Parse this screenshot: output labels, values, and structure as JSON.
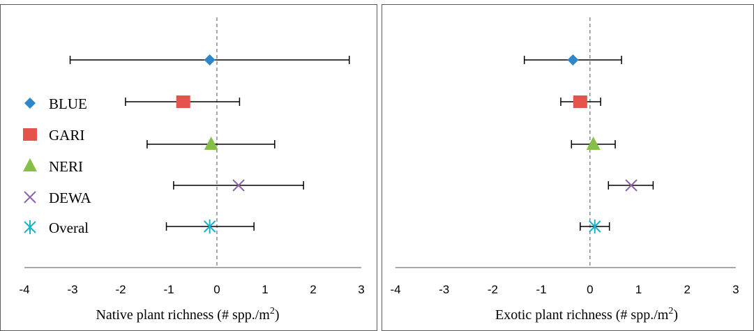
{
  "chart_data": [
    {
      "type": "scatter",
      "subtype": "forest-plot-with-error-bars",
      "xlabel": "Native plant richness (# spp./m²)",
      "xlim": [
        -4,
        3
      ],
      "xticks": [
        "-4",
        "-3",
        "-2",
        "-1",
        "0",
        "1",
        "2",
        "3"
      ],
      "reference_line": 0,
      "legend": {
        "placement": "left",
        "entries": [
          {
            "name": "BLUE",
            "marker": "diamond",
            "color": "#2E86C9"
          },
          {
            "name": "GARI",
            "marker": "square",
            "color": "#E5534B"
          },
          {
            "name": "NERI",
            "marker": "triangle",
            "color": "#86BF45"
          },
          {
            "name": "DEWA",
            "marker": "x",
            "color": "#8E63A8"
          },
          {
            "name": "Overal",
            "marker": "star",
            "color": "#19B2CC"
          }
        ]
      },
      "series": [
        {
          "name": "BLUE",
          "value": -0.15,
          "lower": -3.05,
          "upper": 2.75
        },
        {
          "name": "GARI",
          "value": -0.7,
          "lower": -1.9,
          "upper": 0.47
        },
        {
          "name": "NERI",
          "value": -0.12,
          "lower": -1.45,
          "upper": 1.2
        },
        {
          "name": "DEWA",
          "value": 0.45,
          "lower": -0.9,
          "upper": 1.8
        },
        {
          "name": "Overal",
          "value": -0.15,
          "lower": -1.05,
          "upper": 0.77
        }
      ]
    },
    {
      "type": "scatter",
      "subtype": "forest-plot-with-error-bars",
      "xlabel": "Exotic plant richness (# spp./m²)",
      "xlim": [
        -4,
        3
      ],
      "xticks": [
        "-4",
        "-3",
        "-2",
        "-1",
        "0",
        "1",
        "2",
        "3"
      ],
      "reference_line": 0,
      "series": [
        {
          "name": "BLUE",
          "value": -0.35,
          "lower": -1.35,
          "upper": 0.65
        },
        {
          "name": "GARI",
          "value": -0.2,
          "lower": -0.6,
          "upper": 0.22
        },
        {
          "name": "NERI",
          "value": 0.07,
          "lower": -0.38,
          "upper": 0.52
        },
        {
          "name": "DEWA",
          "value": 0.85,
          "lower": 0.38,
          "upper": 1.3
        },
        {
          "name": "Overal",
          "value": 0.1,
          "lower": -0.2,
          "upper": 0.4
        }
      ]
    }
  ]
}
